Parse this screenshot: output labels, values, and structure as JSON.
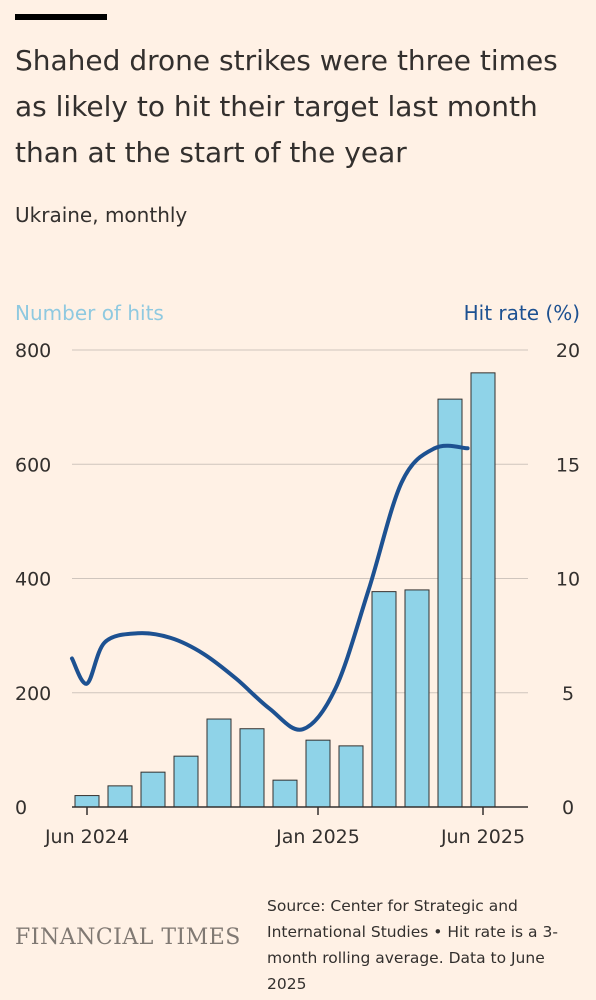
{
  "title": "Shahed drone strikes were three times as likely to hit their target last month than at the start of the year",
  "subtitle": "Ukraine, monthly",
  "source": "Source: Center for Strategic and International Studies • Hit rate is a 3-month rolling average. Data to June 2025",
  "logo": "FINANCIAL TIMES",
  "colors": {
    "background": "#FFF1E5",
    "bars": "#8FD3E8",
    "bar_stroke": "#33302E",
    "line": "#1D5191",
    "left_axis_label": "#8FC9E0",
    "right_axis_label": "#1D5191",
    "grid": "#CFC5BD"
  },
  "chart_data": {
    "type": "bar+line",
    "x": [
      "2024-06",
      "2024-07",
      "2024-08",
      "2024-09",
      "2024-10",
      "2024-11",
      "2024-12",
      "2025-01",
      "2025-02",
      "2025-03",
      "2025-04",
      "2025-05",
      "2025-06"
    ],
    "x_tick_labels": [
      {
        "x": "2024-06",
        "label": "Jun 2024"
      },
      {
        "x": "2025-01",
        "label": "Jan 2025"
      },
      {
        "x": "2025-06",
        "label": "Jun 2025"
      }
    ],
    "series": [
      {
        "name": "Number of hits",
        "type": "bar",
        "axis": "left",
        "values": [
          20,
          37,
          61,
          89,
          154,
          137,
          47,
          117,
          107,
          377,
          380,
          714,
          760
        ]
      },
      {
        "name": "Hit rate (%)",
        "type": "line",
        "axis": "right",
        "x": [
          "2024-05-15",
          "2024-06-15",
          "2024-07-01",
          "2024-08-01",
          "2024-09-01",
          "2024-10-01",
          "2024-11-01",
          "2024-12-01",
          "2025-01-01",
          "2025-02-01",
          "2025-03-01",
          "2025-04-01",
          "2025-05-01",
          "2025-06-01"
        ],
        "values": [
          6.5,
          5.4,
          7.2,
          7.6,
          7.4,
          6.7,
          5.6,
          4.3,
          3.4,
          5.2,
          9.5,
          14.2,
          15.7,
          15.7
        ]
      }
    ],
    "y_left": {
      "label": "Number of hits",
      "ylim": [
        0,
        800
      ],
      "ticks": [
        0,
        200,
        400,
        600,
        800
      ]
    },
    "y_right": {
      "label": "Hit rate (%)",
      "ylim": [
        0,
        20
      ],
      "ticks": [
        0,
        5,
        10,
        15,
        20
      ]
    },
    "grid": true
  }
}
